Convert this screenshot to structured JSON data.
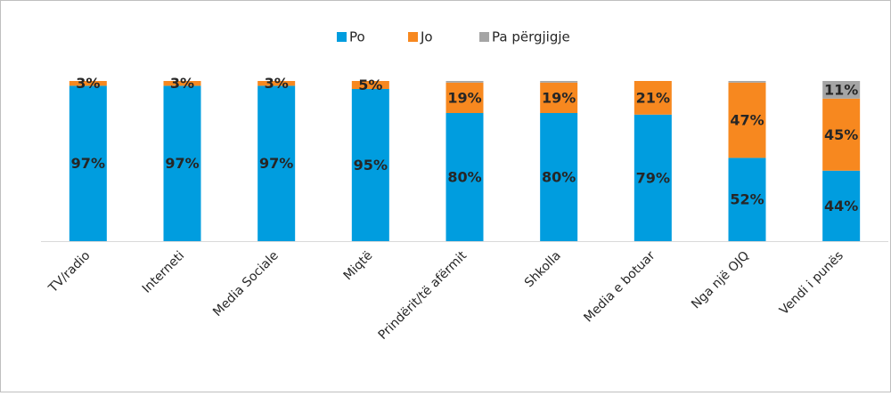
{
  "chart_data": {
    "type": "stacked_bar",
    "categories": [
      "TV/radio",
      "Interneti",
      "Media Sociale",
      "Miqtë",
      "Prindërit/të afërmit",
      "Shkolla",
      "Media e botuar",
      "Nga një OJQ",
      "Vendi i punës"
    ],
    "series": [
      {
        "name": "Po",
        "color": "#009ddf",
        "values": [
          97,
          97,
          97,
          95,
          80,
          80,
          79,
          52,
          44
        ],
        "value_labels": [
          "97%",
          "97%",
          "97%",
          "95%",
          "80%",
          "80%",
          "79%",
          "52%",
          "44%"
        ]
      },
      {
        "name": "Jo",
        "color": "#f7881f",
        "values": [
          3,
          3,
          3,
          5,
          19,
          19,
          21,
          47,
          45
        ],
        "value_labels": [
          "3%",
          "3%",
          "3%",
          "5%",
          "19%",
          "19%",
          "21%",
          "47%",
          "45%"
        ]
      },
      {
        "name": "Pa përgjigje",
        "color": "#a5a5a5",
        "values": [
          0,
          0,
          0,
          0,
          1,
          1,
          0,
          1,
          11
        ],
        "value_labels": [
          null,
          null,
          null,
          null,
          null,
          null,
          null,
          null,
          "11%"
        ]
      }
    ],
    "ylim": [
      0,
      100
    ],
    "legend": "top"
  }
}
